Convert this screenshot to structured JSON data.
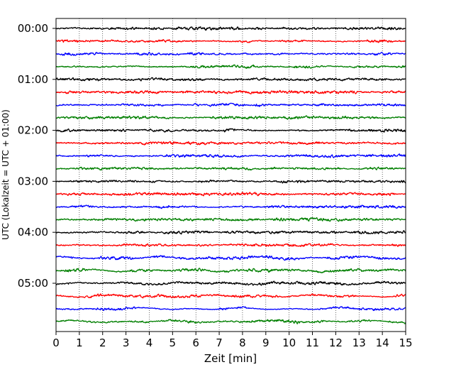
{
  "chart_data": {
    "type": "line",
    "title": "",
    "xlabel": "Zeit  [min]",
    "ylabel": "UTC (Lokalzeit = UTC + 01:00)",
    "xlim": [
      0,
      15
    ],
    "x_ticks": [
      "0",
      "1",
      "2",
      "3",
      "4",
      "5",
      "6",
      "7",
      "8",
      "9",
      "10",
      "11",
      "12",
      "13",
      "14",
      "15"
    ],
    "y_tick_labels": [
      "00:00",
      "01:00",
      "02:00",
      "03:00",
      "04:00",
      "05:00"
    ],
    "grid": "vertical dotted at each minute",
    "trace_interval_minutes": 15,
    "trace_count": 24,
    "trace_colors": [
      "#000000",
      "#ff0000",
      "#0000ff",
      "#007f00"
    ]
  }
}
